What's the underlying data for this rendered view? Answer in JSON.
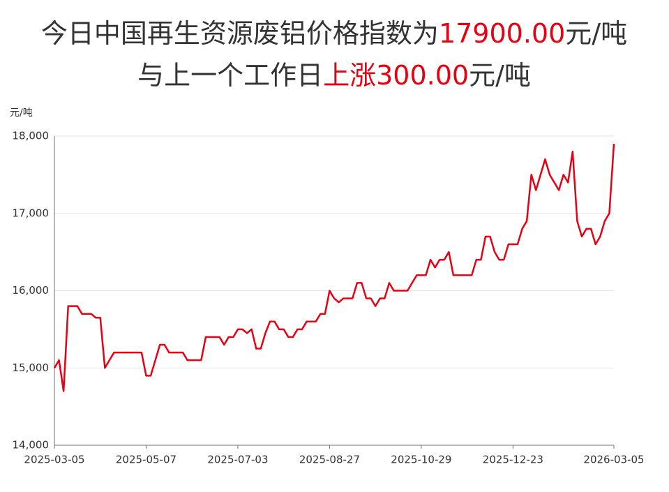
{
  "chart_data": {
    "type": "line",
    "title": [
      [
        {
          "text": "今日中国再生资源废铝价格指数为",
          "color": "#333333"
        },
        {
          "text": "17900.00",
          "color": "#e60012"
        },
        {
          "text": "元/吨",
          "color": "#333333"
        }
      ],
      [
        {
          "text": "与上一个工作日",
          "color": "#333333"
        },
        {
          "text": "上涨300.00",
          "color": "#e60012"
        },
        {
          "text": "元/吨",
          "color": "#333333"
        }
      ]
    ],
    "y_unit": "元/吨",
    "categories": [
      "2025-03-05",
      null,
      null,
      null,
      null,
      null,
      null,
      null,
      null,
      null,
      null,
      null,
      null,
      null,
      null,
      null,
      null,
      null,
      null,
      null,
      "2025-05-07",
      null,
      null,
      null,
      null,
      null,
      null,
      null,
      null,
      null,
      null,
      null,
      null,
      null,
      null,
      null,
      null,
      null,
      null,
      null,
      "2025-07-03",
      null,
      null,
      null,
      null,
      null,
      null,
      null,
      null,
      null,
      null,
      null,
      null,
      null,
      null,
      null,
      null,
      null,
      null,
      null,
      "2025-08-27",
      null,
      null,
      null,
      null,
      null,
      null,
      null,
      null,
      null,
      null,
      null,
      null,
      null,
      null,
      null,
      null,
      null,
      null,
      null,
      "2025-10-29",
      null,
      null,
      null,
      null,
      null,
      null,
      null,
      null,
      null,
      null,
      null,
      null,
      null,
      null,
      null,
      null,
      null,
      null,
      null,
      "2025-12-23",
      null,
      null,
      null,
      null,
      null,
      null,
      null,
      null,
      null,
      null,
      null,
      null,
      null,
      null,
      null,
      null,
      null,
      null,
      null,
      null,
      null,
      "2026-03-05"
    ],
    "series": [
      {
        "name": "废铝价格指数",
        "color": "#e60012",
        "values": [
          15000,
          15100,
          14700,
          15800,
          15800,
          15800,
          15700,
          15700,
          15700,
          15650,
          15650,
          15000,
          15100,
          15200,
          15200,
          15200,
          15200,
          15200,
          15200,
          15200,
          14900,
          14900,
          15100,
          15300,
          15300,
          15200,
          15200,
          15200,
          15200,
          15100,
          15100,
          15100,
          15100,
          15400,
          15400,
          15400,
          15400,
          15300,
          15400,
          15400,
          15500,
          15500,
          15450,
          15500,
          15250,
          15250,
          15450,
          15600,
          15600,
          15500,
          15500,
          15400,
          15400,
          15500,
          15500,
          15600,
          15600,
          15600,
          15700,
          15700,
          16000,
          15900,
          15850,
          15900,
          15900,
          15900,
          16100,
          16100,
          15900,
          15900,
          15800,
          15900,
          15900,
          16100,
          16000,
          16000,
          16000,
          16000,
          16100,
          16200,
          16200,
          16200,
          16400,
          16300,
          16400,
          16400,
          16500,
          16200,
          16200,
          16200,
          16200,
          16200,
          16400,
          16400,
          16700,
          16700,
          16500,
          16400,
          16400,
          16600,
          16600,
          16600,
          16800,
          16900,
          17500,
          17300,
          17500,
          17700,
          17500,
          17400,
          17300,
          17500,
          17400,
          17800,
          16900,
          16700,
          16800,
          16800,
          16600,
          16700,
          16900,
          17000,
          17900
        ]
      }
    ],
    "ylim": [
      14000,
      18000
    ],
    "yticks": [
      {
        "value": 14000,
        "label": "14,000"
      },
      {
        "value": 15000,
        "label": "15,000"
      },
      {
        "value": 16000,
        "label": "16,000"
      },
      {
        "value": 17000,
        "label": "17,000"
      },
      {
        "value": 18000,
        "label": "18,000"
      }
    ],
    "grid": true
  }
}
